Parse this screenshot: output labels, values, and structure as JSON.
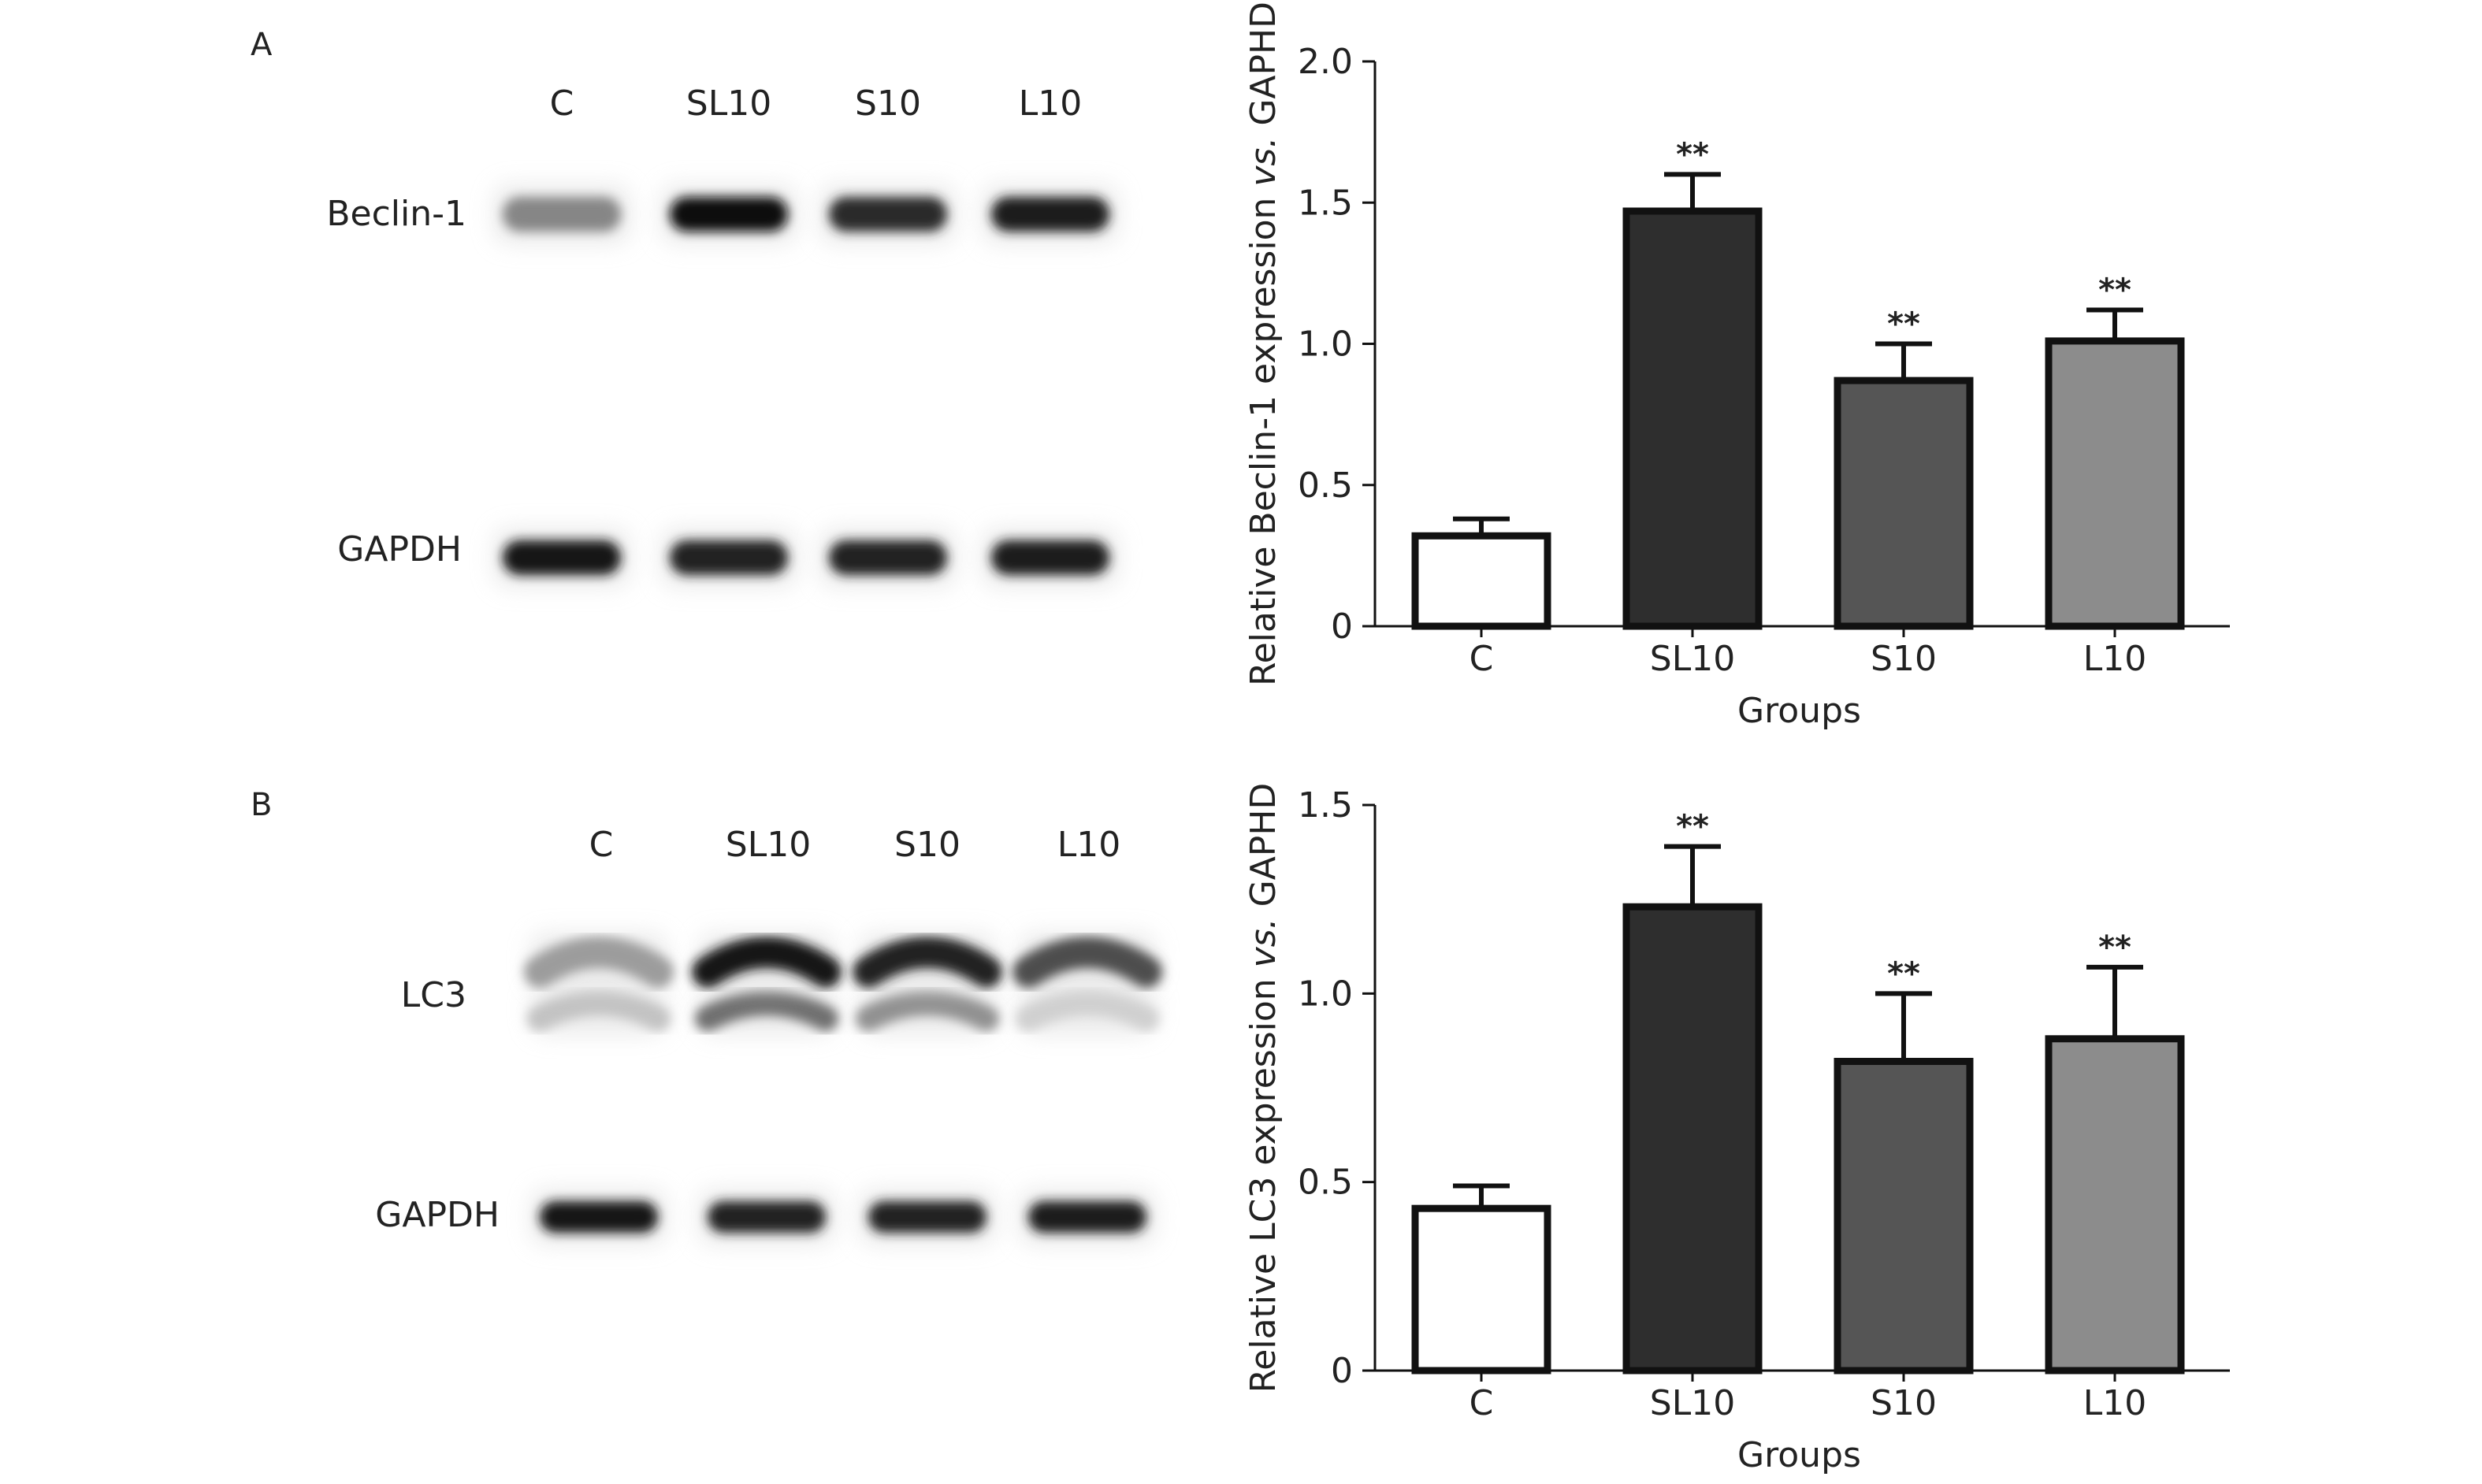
{
  "figure": {
    "panels": [
      {
        "letter": "A",
        "blot": {
          "lanes": [
            "C",
            "SL10",
            "S10",
            "L10"
          ],
          "rows": [
            {
              "label": "Beclin-1",
              "bands": [
                {
                  "intensity": 0.45
                },
                {
                  "intensity": 1.0
                },
                {
                  "intensity": 0.85
                },
                {
                  "intensity": 0.92
                }
              ]
            },
            {
              "label": "GAPDH",
              "bands": [
                {
                  "intensity": 0.95
                },
                {
                  "intensity": 0.9
                },
                {
                  "intensity": 0.9
                },
                {
                  "intensity": 0.92
                }
              ]
            }
          ]
        }
      },
      {
        "letter": "B",
        "blot": {
          "lanes": [
            "C",
            "SL10",
            "S10",
            "L10"
          ],
          "rows": [
            {
              "label": "LC3",
              "bands": [
                {
                  "intensity": 0.35,
                  "lower_intensity": 0.18
                },
                {
                  "intensity": 0.95,
                  "lower_intensity": 0.55
                },
                {
                  "intensity": 0.9,
                  "lower_intensity": 0.4
                },
                {
                  "intensity": 0.7,
                  "lower_intensity": 0.12
                }
              ]
            },
            {
              "label": "GAPDH",
              "bands": [
                {
                  "intensity": 0.95
                },
                {
                  "intensity": 0.9
                },
                {
                  "intensity": 0.9
                },
                {
                  "intensity": 0.92
                }
              ]
            }
          ]
        }
      }
    ]
  },
  "chart_data": [
    {
      "type": "bar",
      "categories": [
        "C",
        "SL10",
        "S10",
        "L10"
      ],
      "values": [
        0.32,
        1.47,
        0.87,
        1.01
      ],
      "errors": [
        0.06,
        0.13,
        0.13,
        0.11
      ],
      "significance": [
        "",
        "**",
        "**",
        "**"
      ],
      "colors": [
        "#ffffff",
        "#2e2e2e",
        "#555555",
        "#8c8c8c"
      ],
      "xlabel": "Groups",
      "ylabel_parts": [
        "Relative Beclin-1 expression ",
        "vs.",
        " GAPHD"
      ],
      "ylim": [
        0,
        2.0
      ],
      "yticks": [
        0,
        0.5,
        1.0,
        1.5,
        2.0
      ],
      "ytick_labels": [
        "0",
        "0.5",
        "1.0",
        "1.5",
        "2.0"
      ]
    },
    {
      "type": "bar",
      "categories": [
        "C",
        "SL10",
        "S10",
        "L10"
      ],
      "values": [
        0.43,
        1.23,
        0.82,
        0.88
      ],
      "errors": [
        0.06,
        0.16,
        0.18,
        0.19
      ],
      "significance": [
        "",
        "**",
        "**",
        "**"
      ],
      "colors": [
        "#ffffff",
        "#2e2e2e",
        "#555555",
        "#8c8c8c"
      ],
      "xlabel": "Groups",
      "ylabel_parts": [
        "Relative LC3 expression ",
        "vs.",
        " GAPHD"
      ],
      "ylim": [
        0,
        1.5
      ],
      "yticks": [
        0,
        0.5,
        1.0,
        1.5
      ],
      "ytick_labels": [
        "0",
        "0.5",
        "1.0",
        "1.5"
      ]
    }
  ]
}
